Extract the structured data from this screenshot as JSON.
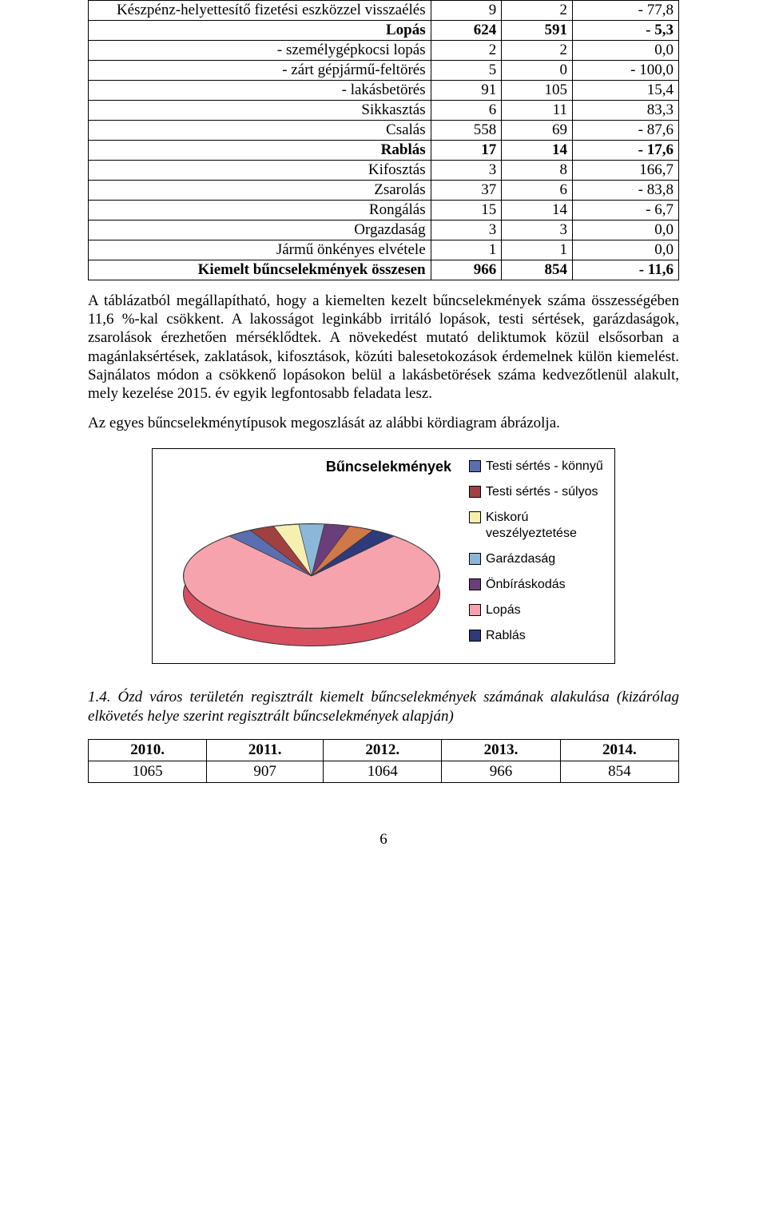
{
  "table1": {
    "col_widths": [
      "58%",
      "12%",
      "12%",
      "18%"
    ],
    "rows": [
      {
        "bold": false,
        "cells": [
          {
            "t": "Készpénz-helyettesítő fizetési eszközzel visszaélés",
            "align": "right"
          },
          {
            "t": "9",
            "align": "r"
          },
          {
            "t": "2",
            "align": "r"
          },
          {
            "t": "- 77,8",
            "align": "r"
          }
        ]
      },
      {
        "bold": true,
        "cells": [
          {
            "t": "Lopás",
            "align": "right"
          },
          {
            "t": "624",
            "align": "r"
          },
          {
            "t": "591",
            "align": "r"
          },
          {
            "t": "- 5,3",
            "align": "r"
          }
        ]
      },
      {
        "bold": false,
        "cells": [
          {
            "t": "- személygépkocsi lopás",
            "align": "right"
          },
          {
            "t": "2",
            "align": "r"
          },
          {
            "t": "2",
            "align": "r"
          },
          {
            "t": "0,0",
            "align": "r"
          }
        ]
      },
      {
        "bold": false,
        "cells": [
          {
            "t": "- zárt gépjármű-feltörés",
            "align": "right"
          },
          {
            "t": "5",
            "align": "r"
          },
          {
            "t": "0",
            "align": "r"
          },
          {
            "t": "- 100,0",
            "align": "r"
          }
        ]
      },
      {
        "bold": false,
        "cells": [
          {
            "t": "- lakásbetörés",
            "align": "right"
          },
          {
            "t": "91",
            "align": "r"
          },
          {
            "t": "105",
            "align": "r"
          },
          {
            "t": "15,4",
            "align": "r"
          }
        ]
      },
      {
        "bold": false,
        "cells": [
          {
            "t": "Sikkasztás",
            "align": "right"
          },
          {
            "t": "6",
            "align": "r"
          },
          {
            "t": "11",
            "align": "r"
          },
          {
            "t": "83,3",
            "align": "r"
          }
        ]
      },
      {
        "bold": false,
        "cells": [
          {
            "t": "Csalás",
            "align": "right"
          },
          {
            "t": "558",
            "align": "r"
          },
          {
            "t": "69",
            "align": "r"
          },
          {
            "t": "- 87,6",
            "align": "r"
          }
        ]
      },
      {
        "bold": true,
        "cells": [
          {
            "t": "Rablás",
            "align": "right"
          },
          {
            "t": "17",
            "align": "r"
          },
          {
            "t": "14",
            "align": "r"
          },
          {
            "t": "- 17,6",
            "align": "r"
          }
        ]
      },
      {
        "bold": false,
        "cells": [
          {
            "t": "Kifosztás",
            "align": "right"
          },
          {
            "t": "3",
            "align": "r"
          },
          {
            "t": "8",
            "align": "r"
          },
          {
            "t": "166,7",
            "align": "r"
          }
        ]
      },
      {
        "bold": false,
        "cells": [
          {
            "t": "Zsarolás",
            "align": "right"
          },
          {
            "t": "37",
            "align": "r"
          },
          {
            "t": "6",
            "align": "r"
          },
          {
            "t": "- 83,8",
            "align": "r"
          }
        ]
      },
      {
        "bold": false,
        "cells": [
          {
            "t": "Rongálás",
            "align": "right"
          },
          {
            "t": "15",
            "align": "r"
          },
          {
            "t": "14",
            "align": "r"
          },
          {
            "t": "- 6,7",
            "align": "r"
          }
        ]
      },
      {
        "bold": false,
        "cells": [
          {
            "t": "Orgazdaság",
            "align": "right"
          },
          {
            "t": "3",
            "align": "r"
          },
          {
            "t": "3",
            "align": "r"
          },
          {
            "t": "0,0",
            "align": "r"
          }
        ]
      },
      {
        "bold": false,
        "cells": [
          {
            "t": "Jármű önkényes elvétele",
            "align": "right"
          },
          {
            "t": "1",
            "align": "r"
          },
          {
            "t": "1",
            "align": "r"
          },
          {
            "t": "0,0",
            "align": "r"
          }
        ]
      },
      {
        "bold": true,
        "cells": [
          {
            "t": "Kiemelt bűncselekmények összesen",
            "align": "right"
          },
          {
            "t": "966",
            "align": "r"
          },
          {
            "t": "854",
            "align": "r"
          },
          {
            "t": "- 11,6",
            "align": "r"
          }
        ]
      }
    ]
  },
  "para1": "A táblázatból megállapítható, hogy a kiemelten kezelt bűncselekmények száma összességében 11,6 %-kal csökkent. A lakosságot leginkább irritáló lopások, testi sértések, garázdaságok, zsarolások érezhetően mérséklődtek. A növekedést mutató deliktumok közül elsősorban a magánlaksértések, zaklatások, kifosztások, közúti balesetokozások érdemelnek külön kiemelést. Sajnálatos módon a csökkenő lopásokon belül a lakásbetörések száma kedvezőtlenül alakult, mely kezelése  2015. év egyik legfontosabb feladata lesz.",
  "para2": "Az egyes bűncselekménytípusok megoszlását az alábbi kördiagram ábrázolja.",
  "chart": {
    "title": "Bűncselekmények",
    "type": "pie-3d",
    "big_slice_color": "#f7a3ad",
    "side_color": "#d85060",
    "small_slice_colors": [
      "#5b6fb0",
      "#a04040",
      "#f5f0b0",
      "#8bb8d8",
      "#6a3e7a",
      "#d07848",
      "#2e3a7a"
    ],
    "background_color": "#ffffff",
    "border_color": "#000000",
    "font_family": "Arial",
    "title_fontsize": 18,
    "legend_fontsize": 16,
    "legend": [
      {
        "label": "Testi sértés - könnyű",
        "color": "#5b6fb0"
      },
      {
        "label": "Testi sértés - súlyos",
        "color": "#a04040"
      },
      {
        "label": "Kiskorú veszélyeztetése",
        "color": "#f5f0b0"
      },
      {
        "label": "Garázdaság",
        "color": "#8bb8d8"
      },
      {
        "label": "Önbíráskodás",
        "color": "#6a3e7a"
      },
      {
        "label": "Lopás",
        "color": "#f7a3ad"
      },
      {
        "label": "Rablás",
        "color": "#2e3a7a"
      }
    ]
  },
  "caption": "1.4. Ózd város területén regisztrált kiemelt bűncselekmények számának alakulása (kizárólag elkövetés helye szerint regisztrált bűncselekmények alapján)",
  "table2": {
    "headers": [
      "2010.",
      "2011.",
      "2012.",
      "2013.",
      "2014."
    ],
    "row": [
      "1065",
      "907",
      "1064",
      "966",
      "854"
    ]
  },
  "page_number": "6"
}
